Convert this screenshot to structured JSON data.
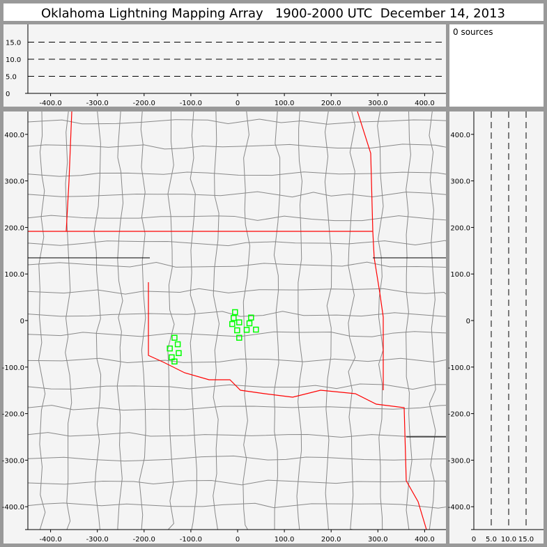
{
  "title": "Oklahoma Lightning Mapping Array   1900-2000 UTC  December 14, 2013",
  "source_count_label": "0 sources",
  "colors": {
    "frame": "#999999",
    "plot_bg": "#f4f4f4",
    "state_border": "#ff0000",
    "county_line": "#888888",
    "source_marker": "#00ff00"
  },
  "chart_data": [
    {
      "type": "scatter",
      "panel": "altitude-vs-east-west",
      "xlim": [
        -450,
        450
      ],
      "ylim": [
        0,
        20
      ],
      "xticks": [
        "-400.0",
        "-300.0",
        "-200.0",
        "-100.0",
        "0",
        "100.0",
        "200.0",
        "300.0",
        "400.0"
      ],
      "yticks": [
        "0",
        "5.0",
        "10.0",
        "15.0"
      ],
      "grid": "dashed horizontal at 5, 10, 15",
      "points": []
    },
    {
      "type": "scatter",
      "panel": "plan-view-map",
      "xlim": [
        -450,
        450
      ],
      "ylim": [
        -450,
        450
      ],
      "xticks": [
        "-400.0",
        "-300.0",
        "-200.0",
        "-100.0",
        "0",
        "100.0",
        "200.0",
        "300.0",
        "400.0"
      ],
      "yticks": [
        "-400.0",
        "-300.0",
        "-200.0",
        "-100.0",
        "0",
        "100.0",
        "200.0",
        "300.0",
        "400.0"
      ],
      "marker": "hollow green square",
      "points": [
        [
          -5.5,
          18
        ],
        [
          -8.5,
          5.5
        ],
        [
          -11.5,
          -7.5
        ],
        [
          3.4,
          -4
        ],
        [
          -1,
          -21
        ],
        [
          3.4,
          -37
        ],
        [
          19.4,
          -20
        ],
        [
          25.3,
          -6
        ],
        [
          28.8,
          6.4
        ],
        [
          39.2,
          -19.5
        ],
        [
          -135,
          -37
        ],
        [
          -128,
          -51
        ],
        [
          -145,
          -60
        ],
        [
          -126,
          -70
        ],
        [
          -141,
          -79
        ],
        [
          -135,
          -88
        ]
      ]
    },
    {
      "type": "scatter",
      "panel": "north-south-vs-altitude",
      "xlim": [
        0,
        20
      ],
      "ylim": [
        -450,
        450
      ],
      "xticks": [
        "0",
        "5.0",
        "10.0",
        "15.0"
      ],
      "yticks": [
        "-400.0",
        "-300.0",
        "-200.0",
        "-100.0",
        "0",
        "100.0",
        "200.0",
        "300.0",
        "400.0"
      ],
      "grid": "dashed vertical at 5, 10, 15",
      "points": []
    }
  ]
}
